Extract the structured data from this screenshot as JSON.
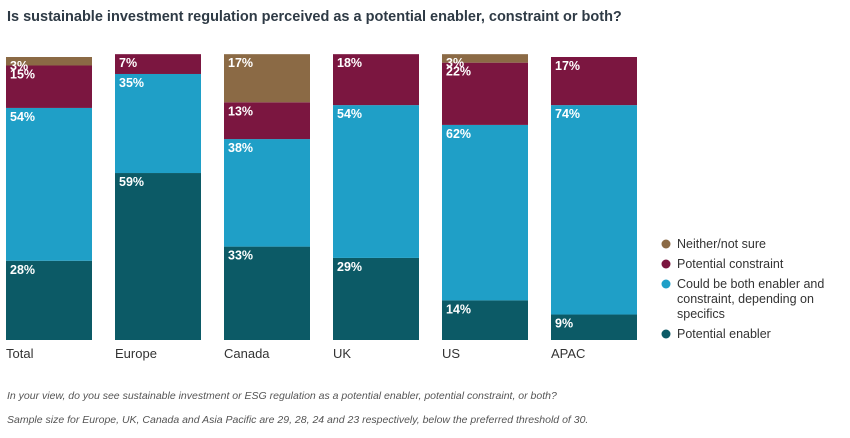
{
  "chart_data": {
    "type": "bar",
    "stacked": true,
    "title": "Is sustainable investment regulation perceived as a potential enabler, constraint or both?",
    "categories": [
      "Total",
      "Europe",
      "Canada",
      "UK",
      "US",
      "APAC"
    ],
    "ylim": [
      0,
      100
    ],
    "grid": false,
    "legend_position": "right",
    "series": [
      {
        "name": "Potential enabler",
        "color": "#0c5a66",
        "values": [
          28,
          59,
          33,
          29,
          14,
          9
        ]
      },
      {
        "name": "Could be both enabler and constraint, depending on specifics",
        "color": "#1f9fc7",
        "values": [
          54,
          35,
          38,
          54,
          62,
          74
        ]
      },
      {
        "name": "Potential constraint",
        "color": "#7b1640",
        "values": [
          15,
          7,
          13,
          18,
          22,
          17
        ]
      },
      {
        "name": "Neither/not sure",
        "color": "#8b6a45",
        "values": [
          3,
          0,
          17,
          0,
          3,
          0
        ]
      }
    ],
    "legend": [
      {
        "lines": [
          "Neither/not sure"
        ],
        "color": "#8b6a45"
      },
      {
        "lines": [
          "Potential constraint"
        ],
        "color": "#7b1640"
      },
      {
        "lines": [
          "Could be both enabler and",
          "constraint, depending on",
          "specifics"
        ],
        "color": "#1f9fc7"
      },
      {
        "lines": [
          "Potential enabler"
        ],
        "color": "#0c5a66"
      }
    ]
  },
  "footnotes": {
    "question": "In your view, do you see sustainable investment or ESG regulation as a potential enabler, potential constraint, or both?",
    "sample": "Sample size for Europe, UK, Canada and Asia Pacific are 29, 28, 24 and 23 respectively, below the preferred threshold of 30."
  }
}
